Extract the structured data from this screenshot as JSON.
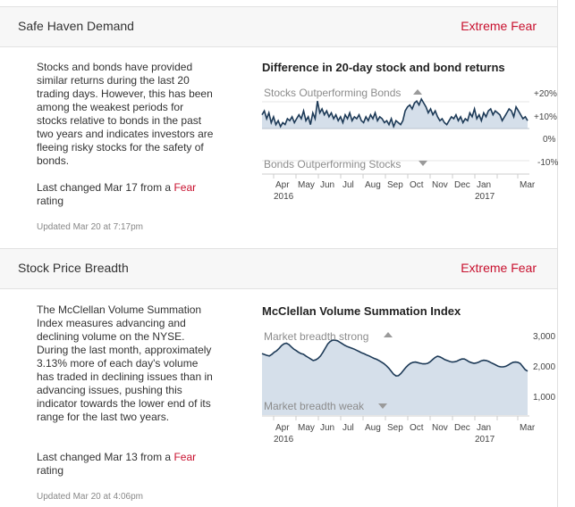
{
  "sections": [
    {
      "title": "Safe Haven Demand",
      "rating": "Extreme Fear",
      "description": "Stocks and bonds have provided similar returns during the last 20 trading days. However, this has been among the weakest periods for stocks relative to bonds in the past two years and indicates investors are fleeing risky stocks for the safety of bonds.",
      "changed_prefix": "Last changed Mar 17 from a",
      "changed_rating": "Fear",
      "changed_suffix": "rating",
      "updated": "Updated Mar 20 at 7:17pm",
      "chart_title": "Difference in 20-day stock and bond returns",
      "upper_label": "Stocks Outperforming Bonds",
      "lower_label": "Bonds Outperforming Stocks",
      "y_ticks": [
        "+20%",
        "+10%",
        "0%",
        "-10%"
      ],
      "months": [
        "Apr",
        "May",
        "Jun",
        "Jul",
        "Aug",
        "Sep",
        "Oct",
        "Nov",
        "Dec",
        "Jan",
        "Mar"
      ],
      "years": [
        "2016",
        "2017"
      ]
    },
    {
      "title": "Stock Price Breadth",
      "rating": "Extreme Fear",
      "description": "The McClellan Volume Summation Index measures advancing and declining volume on the NYSE. During the last month, approximately 3.13% more of each day's volume has traded in declining issues than in advancing issues, pushing this indicator towards the lower end of its range for the last two years.",
      "changed_prefix": "Last changed Mar 13 from a",
      "changed_rating": "Fear",
      "changed_suffix": "rating",
      "updated": "Updated Mar 20 at 4:06pm",
      "chart_title": "McClellan Volume Summation Index",
      "upper_label": "Market breadth strong",
      "lower_label": "Market breadth weak",
      "y_ticks": [
        "3,000",
        "2,000",
        "1,000"
      ],
      "months": [
        "Apr",
        "May",
        "Jun",
        "Jul",
        "Aug",
        "Sep",
        "Oct",
        "Nov",
        "Dec",
        "Jan",
        "Mar"
      ],
      "years": [
        "2016",
        "2017"
      ]
    }
  ],
  "chart_data": [
    {
      "type": "area",
      "title": "Difference in 20-day stock and bond returns",
      "y_unit": "%",
      "ylim": [
        -10,
        20
      ],
      "x_start": "2016-04",
      "x_end": "2017-03",
      "values": [
        7,
        9,
        5,
        8,
        3,
        6,
        2,
        4,
        1,
        3,
        2,
        5,
        4,
        6,
        3,
        5,
        7,
        5,
        9,
        4,
        6,
        2,
        8,
        5,
        14,
        8,
        10,
        7,
        9,
        6,
        8,
        5,
        7,
        4,
        6,
        3,
        7,
        5,
        8,
        4,
        6,
        5,
        7,
        4,
        3,
        6,
        4,
        7,
        5,
        8,
        4,
        6,
        5,
        3,
        4,
        2,
        5,
        1,
        4,
        3,
        2,
        4,
        9,
        11,
        12,
        10,
        13,
        14,
        12,
        15,
        13,
        11,
        8,
        10,
        7,
        9,
        6,
        4,
        5,
        3,
        2,
        4,
        6,
        5,
        7,
        4,
        6,
        3,
        5,
        4,
        8,
        6,
        10,
        5,
        7,
        4,
        8,
        6,
        9,
        10,
        7,
        9,
        8,
        7,
        4,
        6,
        8,
        10,
        9,
        6,
        11,
        9,
        7,
        5,
        6,
        4
      ]
    },
    {
      "type": "area",
      "title": "McClellan Volume Summation Index",
      "ylim": [
        0,
        3000
      ],
      "x_start": "2016-04",
      "x_end": "2017-03",
      "values": [
        2380,
        2350,
        2320,
        2300,
        2350,
        2420,
        2470,
        2550,
        2640,
        2700,
        2720,
        2680,
        2600,
        2530,
        2480,
        2420,
        2380,
        2360,
        2300,
        2250,
        2200,
        2150,
        2170,
        2220,
        2300,
        2420,
        2560,
        2700,
        2780,
        2820,
        2820,
        2800,
        2750,
        2700,
        2650,
        2610,
        2580,
        2550,
        2520,
        2480,
        2440,
        2400,
        2370,
        2330,
        2300,
        2260,
        2220,
        2190,
        2150,
        2100,
        2050,
        1980,
        1900,
        1800,
        1700,
        1640,
        1650,
        1720,
        1820,
        1920,
        2000,
        2060,
        2090,
        2100,
        2080,
        2060,
        2040,
        2040,
        2060,
        2110,
        2180,
        2250,
        2290,
        2270,
        2230,
        2180,
        2150,
        2120,
        2100,
        2110,
        2130,
        2170,
        2200,
        2200,
        2160,
        2110,
        2080,
        2060,
        2070,
        2100,
        2140,
        2160,
        2150,
        2120,
        2080,
        2040,
        2000,
        1960,
        1940,
        1940,
        1960,
        2000,
        2050,
        2090,
        2100,
        2090,
        2050,
        1950,
        1850,
        1800
      ]
    }
  ]
}
